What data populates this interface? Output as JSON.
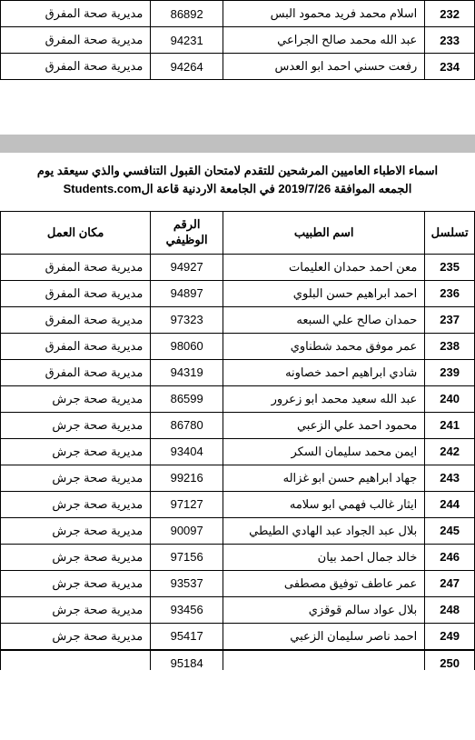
{
  "top_table": {
    "rows": [
      {
        "seq": "232",
        "name": "اسلام محمد فريد محمود البس",
        "id": "86892",
        "loc": "مديرية صحة المفرق"
      },
      {
        "seq": "233",
        "name": "عبد الله محمد صالح الجراعي",
        "id": "94231",
        "loc": "مديرية صحة المفرق"
      },
      {
        "seq": "234",
        "name": "رفعت حسني احمد ابو العدس",
        "id": "94264",
        "loc": "مديرية صحة المفرق"
      }
    ]
  },
  "heading": {
    "line1": "اسماء الاطباء العاميين المرشحين للتقدم لامتحان القبول التنافسي والذي سيعقد يوم",
    "line2": "الجمعه الموافقة 2019/7/26 في الجامعة الاردنية قاعة الStudents.com"
  },
  "main_table": {
    "headers": {
      "seq": "تسلسل",
      "name": "اسم الطبيب",
      "id_line1": "الرقم",
      "id_line2": "الوظيفي",
      "loc": "مكان العمل"
    },
    "rows": [
      {
        "seq": "235",
        "name": "معن احمد حمدان العليمات",
        "id": "94927",
        "loc": "مديرية صحة المفرق"
      },
      {
        "seq": "236",
        "name": "احمد ابراهيم حسن البلوي",
        "id": "94897",
        "loc": "مديرية صحة المفرق"
      },
      {
        "seq": "237",
        "name": "حمدان صالح علي السبعه",
        "id": "97323",
        "loc": "مديرية صحة المفرق"
      },
      {
        "seq": "238",
        "name": "عمر موفق محمد شطناوي",
        "id": "98060",
        "loc": "مديرية صحة المفرق"
      },
      {
        "seq": "239",
        "name": "شادي ابراهيم احمد خصاونه",
        "id": "94319",
        "loc": "مديرية صحة المفرق"
      },
      {
        "seq": "240",
        "name": "عبد الله سعيد محمد ابو زعرور",
        "id": "86599",
        "loc": "مديرية صحة جرش"
      },
      {
        "seq": "241",
        "name": "محمود احمد علي الزعبي",
        "id": "86780",
        "loc": "مديرية صحة جرش"
      },
      {
        "seq": "242",
        "name": "ايمن محمد سليمان السكر",
        "id": "93404",
        "loc": "مديرية صحة جرش"
      },
      {
        "seq": "243",
        "name": "جهاد ابراهيم حسن ابو غزاله",
        "id": "99216",
        "loc": "مديرية صحة جرش"
      },
      {
        "seq": "244",
        "name": "ايثار غالب فهمي ابو سلامه",
        "id": "97127",
        "loc": "مديرية صحة جرش"
      },
      {
        "seq": "245",
        "name": "بلال عبد الجواد عبد الهادي الطيطي",
        "id": "90097",
        "loc": "مديرية صحة جرش"
      },
      {
        "seq": "246",
        "name": "خالد جمال احمد بيان",
        "id": "97156",
        "loc": "مديرية صحة جرش"
      },
      {
        "seq": "247",
        "name": "عمر عاطف توفيق مصطفى",
        "id": "93537",
        "loc": "مديرية صحة جرش"
      },
      {
        "seq": "248",
        "name": "بلال عواد سالم قوقزي",
        "id": "93456",
        "loc": "مديرية صحة جرش"
      },
      {
        "seq": "249",
        "name": "احمد ناصر سليمان الزعبي",
        "id": "95417",
        "loc": "مديرية صحة جرش"
      }
    ],
    "cutoff_row": {
      "seq": "250",
      "name": "",
      "id": "95184",
      "loc": ""
    }
  },
  "styles": {
    "border_color": "#000000",
    "text_color": "#000000",
    "background": "#ffffff",
    "gray_bar": "#c0c0c0",
    "font_size_table": 13,
    "font_size_heading": 13
  }
}
